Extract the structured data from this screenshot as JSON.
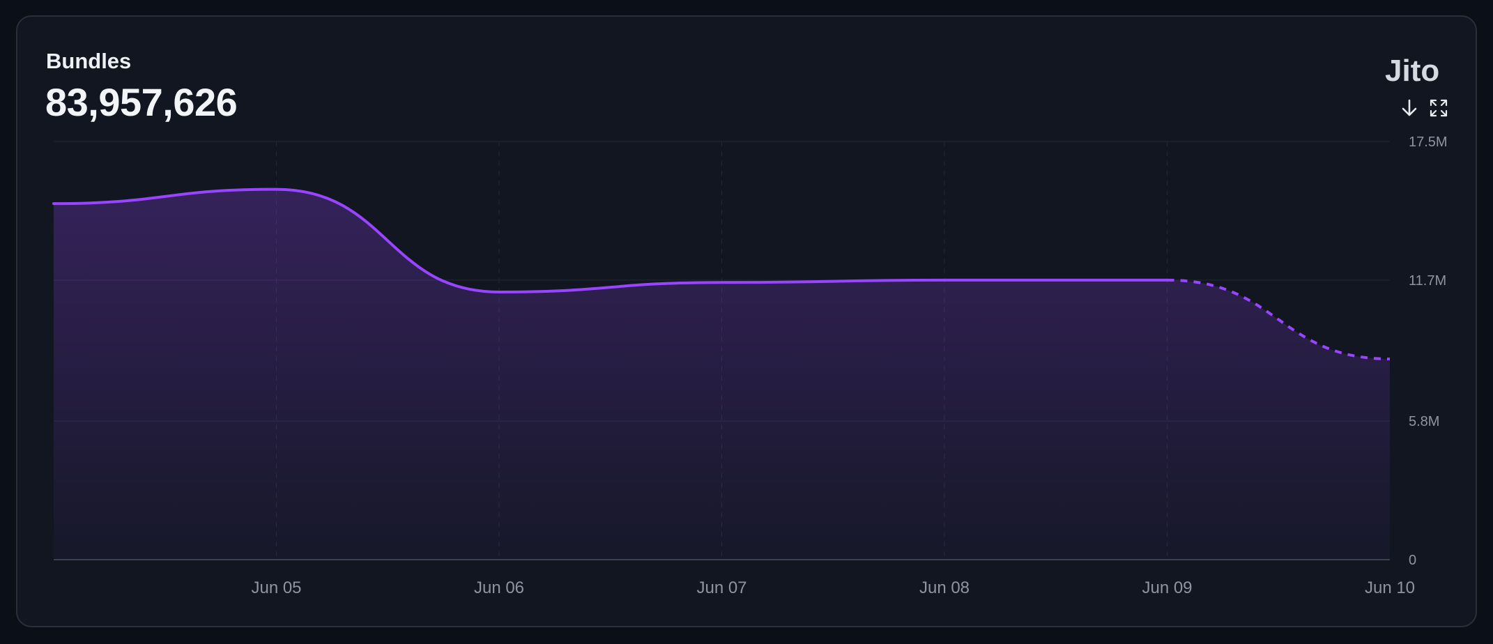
{
  "header": {
    "title": "Bundles",
    "total": "83,957,626",
    "logo_text": "Jito"
  },
  "toolbar": {
    "download_icon": "download-arrow-icon",
    "expand_icon": "expand-icon"
  },
  "colors": {
    "accent": "#9945ff",
    "background": "#0b0f17",
    "card": "#111620",
    "gridline": "#232834",
    "tick_text": "#8d95a3"
  },
  "chart_data": {
    "type": "area",
    "title": "Bundles",
    "xlabel": "",
    "ylabel": "",
    "x": [
      "2024-06-04",
      "2024-06-05",
      "2024-06-06",
      "2024-06-07",
      "2024-06-08",
      "2024-06-09",
      "2024-06-10"
    ],
    "series": [
      {
        "values": [
          14.9,
          15.5,
          11.2,
          11.6,
          11.7,
          11.7,
          8.4
        ],
        "incomplete_from": "2024-06-09"
      }
    ],
    "value_unit": "M",
    "x_tick_labels": [
      "Jun 05",
      "Jun 06",
      "Jun 07",
      "Jun 08",
      "Jun 09",
      "Jun 10"
    ],
    "y_tick_labels": [
      "0",
      "5.8M",
      "11.7M",
      "17.5M"
    ],
    "y_ticks": [
      0,
      5.8,
      11.7,
      17.5
    ],
    "ylim": [
      0,
      17.5
    ],
    "grid": true,
    "y_axis_position": "right"
  }
}
